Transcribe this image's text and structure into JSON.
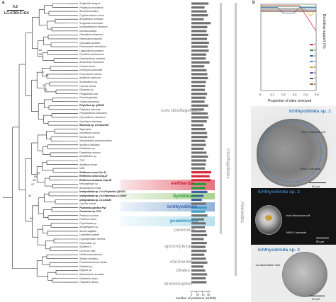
{
  "panel_a": {
    "letter": "a",
    "scale_value": "0.2",
    "model": "LG+C60+F+G4",
    "taxa": [
      {
        "name": "Scrippsiella hangoei",
        "bold": false
      },
      {
        "name": "Peridinium aciculiferum",
        "bold": false
      },
      {
        "name": "Biecheleria baltica",
        "bold": false
      },
      {
        "name": "Crypthecodinium cohnii",
        "bold": false
      },
      {
        "name": "Amphidinium ocellatum",
        "bold": false
      },
      {
        "name": "Scrippsiella trochoidea",
        "bold": false
      },
      {
        "name": "Kryptoperidinium foliaceum",
        "bold": false
      },
      {
        "name": "Durinskia baltica",
        "bold": false
      },
      {
        "name": "Glenodinium foliaceum",
        "bold": false
      },
      {
        "name": "Heterocapsa triquetra",
        "bold": false
      },
      {
        "name": "Gonyaulax spinifera",
        "bold": false
      },
      {
        "name": "Protoceratium reticulatum",
        "bold": false
      },
      {
        "name": "Lingulodinium polyedra",
        "bold": false
      },
      {
        "name": "Pyrodinium bahamense",
        "bold": false
      },
      {
        "name": "Gambierdiscus australes",
        "bold": false
      },
      {
        "name": "Alexandrium tamarense",
        "bold": false
      },
      {
        "name": "Ceratium fusus",
        "bold": false
      },
      {
        "name": "Dinophysis acuminata",
        "bold": false
      },
      {
        "name": "Prorocentrum micans",
        "bold": false
      },
      {
        "name": "Azadinium spinosum",
        "bold": false
      },
      {
        "name": "Symbiodinium sp.",
        "bold": false
      },
      {
        "name": "Oxyrrhis marina",
        "bold": false
      },
      {
        "name": "Dinobryon sp.",
        "bold": false
      },
      {
        "name": "Pelagodinium beii",
        "bold": false
      },
      {
        "name": "Polarella glacialis",
        "bold": false
      },
      {
        "name": "Yihiella yeosuensis",
        "bold": false
      },
      {
        "name": "Polykrikos sp. Q19102",
        "bold": true
      },
      {
        "name": "Polykrikos lebouriae",
        "bold": false
      },
      {
        "name": "Pheopolykrikos hartmannii",
        "bold": false
      },
      {
        "name": "Gymnodinium catenatum",
        "bold": false
      },
      {
        "name": "Gyrodinium dominans",
        "bold": false
      },
      {
        "name": "Warnowia sp. LC31warn87",
        "bold": true
      },
      {
        "name": "Togula jolla",
        "bold": false
      },
      {
        "name": "Karlodinium micrum",
        "bold": false
      },
      {
        "name": "Karenia brevis",
        "bold": false
      },
      {
        "name": "Spatulodinium pseudonoctiluca",
        "bold": false
      },
      {
        "name": "Noctiluca scintillans",
        "bold": false
      },
      {
        "name": "Kofoidinium sp.",
        "bold": false
      },
      {
        "name": "Fabadinium amicum",
        "bold": false
      },
      {
        "name": "Amphidinium sp.",
        "bold": false
      },
      {
        "name": "TGD",
        "bold": false
      },
      {
        "name": "Abedinium folium",
        "bold": false
      },
      {
        "name": "MGD",
        "bold": false
      },
      {
        "name": "Eleftheros xomoi Cur-11",
        "bold": true
      },
      {
        "name": "Eleftheros xomoi Colp-37",
        "bold": true
      },
      {
        "name": "Eleftheros karadeniz Colp-25",
        "bold": true
      },
      {
        "name": "Hematodinium sp.",
        "bold": false
      },
      {
        "name": "Amoebophrya ceratii",
        "bold": false
      },
      {
        "name": "Ichthyodinida sp. 1 ex Polykrikos Q19102",
        "bold": true
      },
      {
        "name": "Ichthyodinida sp. 2 ex Warnowia LC31W97",
        "bold": true
      },
      {
        "name": "Ichthyodinida sp. 3 LC31G28",
        "bold": true
      },
      {
        "name": "Oxyrrhis marina",
        "bold": false
      },
      {
        "name": "Psammosa pacifica Psp",
        "bold": true
      },
      {
        "name": "Psammosa sp. C34",
        "bold": true
      },
      {
        "name": "Perkinsus marinus",
        "bold": false
      },
      {
        "name": "Perkinsus olseni",
        "bold": false
      },
      {
        "name": "Polyrhabdina sp.",
        "bold": false
      },
      {
        "name": "Ascogregarina sp.",
        "bold": false
      },
      {
        "name": "Ancora sagittata",
        "bold": false
      },
      {
        "name": "Lankesteria abbotti",
        "bold": false
      },
      {
        "name": "Cryptosporidium hominis",
        "bold": false
      },
      {
        "name": "Plasmodium sp.",
        "bold": false
      },
      {
        "name": "Symbiont X",
        "bold": false
      },
      {
        "name": "Chromera velia",
        "bold": false
      },
      {
        "name": "Vitrella brassicaformis",
        "bold": false
      },
      {
        "name": "Stentor coeruleus",
        "bold": false
      },
      {
        "name": "Pseudomicrothorax dubius",
        "bold": false
      },
      {
        "name": "Pedinella sp.",
        "bold": false
      },
      {
        "name": "Epipyxis sp.",
        "bold": false
      },
      {
        "name": "Aphanomyces invadans",
        "bold": false
      },
      {
        "name": "Koktebelia satura",
        "bold": false
      },
      {
        "name": "Platysulcus tardus",
        "bold": false
      }
    ],
    "bootstrap_labels": [
      "82",
      "88",
      "77",
      "75",
      "94",
      "98",
      "69",
      "84",
      "95",
      "97",
      "94",
      "98"
    ],
    "groups": {
      "core_dino": "core dinoflagellates",
      "dinoflagellates": "Dinoflagellates",
      "alveolates": "Alveolates",
      "eleftherids": "eleftherids",
      "syndiniales": "Syndiniales",
      "ichthyodinida": "Ichthyodinida",
      "psammosids": "psammosids",
      "perkinsids": "perkinsids",
      "apicomplexans": "apicomplexans",
      "chromerids": "chromerids",
      "ciliates": "ciliates",
      "stramenopiles": "stramenopiles"
    },
    "bar_values": [
      62,
      48,
      56,
      60,
      45,
      70,
      58,
      55,
      61,
      57,
      64,
      59,
      63,
      54,
      52,
      66,
      47,
      55,
      58,
      60,
      53,
      50,
      49,
      57,
      52,
      48,
      61,
      46,
      59,
      62,
      56,
      44,
      51,
      57,
      58,
      50,
      53,
      45,
      55,
      60,
      54,
      52,
      49,
      72,
      66,
      70,
      54,
      50,
      58,
      44,
      38,
      52,
      56,
      50,
      58,
      46,
      52,
      49,
      53,
      57,
      45,
      56,
      51,
      55,
      47,
      53,
      58,
      44,
      50,
      57,
      52,
      55
    ],
    "bar_colors": {
      "default": "#707070",
      "eleftherids": "#d9283a",
      "syndiniales": "#2a9a3c",
      "ichthyodinida": "#3f5fa8",
      "psammosids": "#3aa0c8"
    },
    "xaxis_label": "number of positions (x1000)",
    "xaxis_ticks": [
      "0",
      "20",
      "40",
      "60"
    ],
    "colors": {
      "eleftherids": "#e06270",
      "syndiniales": "#a9d18e",
      "ichthyodinida": "#8fb3d9",
      "psammosids": "#b7e1ef",
      "group_grey": "#8a8a8a"
    }
  },
  "panel_b": {
    "letter": "b",
    "xlabel": "Proportion of sites removed",
    "ylabel": "Bootstrap support (%)",
    "xticks": [
      "0",
      "0.1",
      "0.2",
      "0.3",
      "0.4",
      "0.5"
    ],
    "legend": [
      "1",
      "2",
      "3",
      "4",
      "5",
      "6",
      "7",
      "8"
    ],
    "series_colors": [
      "#d9283a",
      "#2a9a3c",
      "#3f5fa8",
      "#3aa0c8",
      "#e8a020",
      "#7b4fa0",
      "#555555",
      "#9c6b30"
    ]
  },
  "panel_c": {
    "letter": "c",
    "title": "Ichthyodinida sp. 1",
    "host_label": "host Polykrikos cell",
    "parasite_label": "MALV-I parasite",
    "scale": "50 µm"
  },
  "panel_d": {
    "letter": "d",
    "title": "Ichthyodinida sp. 2",
    "host_label": "host Warnowia cell",
    "parasite_label": "MALV-I parasite",
    "scale": "50 µm"
  },
  "panel_e": {
    "letter": "e",
    "title": "Ichthyodinida sp. 3",
    "host_label": "no discernable host",
    "scale": "20 µm"
  }
}
